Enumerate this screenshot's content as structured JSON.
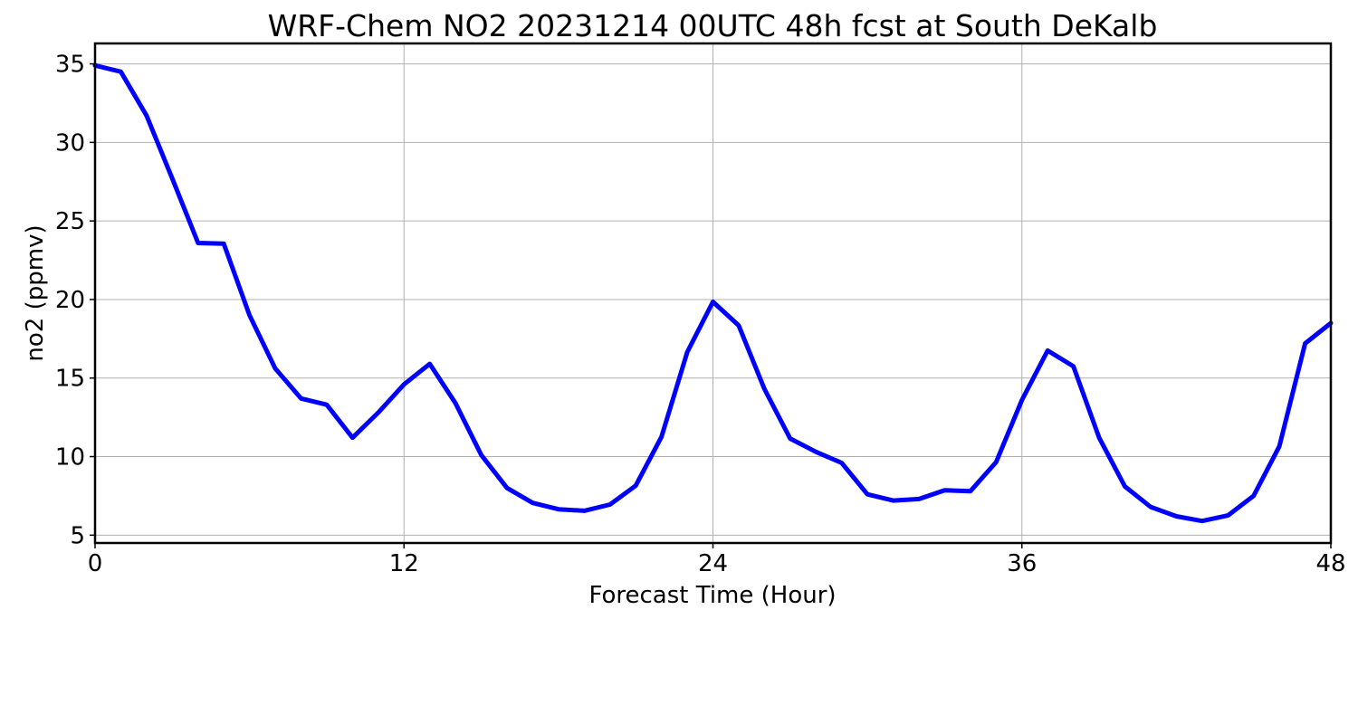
{
  "chart_data": {
    "type": "line",
    "title": "WRF-Chem NO2  20231214 00UTC 48h fcst at South DeKalb",
    "xlabel": "Forecast Time (Hour)",
    "ylabel": "no2  (ppmv)",
    "xlim": [
      0,
      48
    ],
    "ylim": [
      4.5,
      36.3
    ],
    "xticks": [
      0,
      12,
      24,
      36,
      48
    ],
    "yticks": [
      5,
      10,
      15,
      20,
      25,
      30,
      35
    ],
    "grid": true,
    "line_color": "#0000ff",
    "series": [
      {
        "x": [
          0,
          1,
          2,
          3,
          4,
          5,
          6,
          7,
          8,
          9,
          10,
          11,
          12,
          13,
          14,
          15,
          16,
          17,
          18,
          19,
          20,
          21,
          22,
          23,
          24,
          25,
          26,
          27,
          28,
          29,
          30,
          31,
          32,
          33,
          34,
          35,
          36,
          37,
          38,
          39,
          40,
          41,
          42,
          43,
          44,
          45,
          46,
          47,
          48
        ],
        "values": [
          34.9,
          34.5,
          31.7,
          27.7,
          23.6,
          23.55,
          19.0,
          15.6,
          13.7,
          13.3,
          11.2,
          12.8,
          14.6,
          15.9,
          13.4,
          10.1,
          8.0,
          7.05,
          6.65,
          6.55,
          6.95,
          8.15,
          11.25,
          16.65,
          19.85,
          18.35,
          14.3,
          11.15,
          10.3,
          9.6,
          7.6,
          7.2,
          7.3,
          7.85,
          7.8,
          9.65,
          13.6,
          16.75,
          15.75,
          11.2,
          8.1,
          6.8,
          6.2,
          5.9,
          6.25,
          7.5,
          10.65,
          17.2,
          18.5
        ]
      }
    ]
  }
}
